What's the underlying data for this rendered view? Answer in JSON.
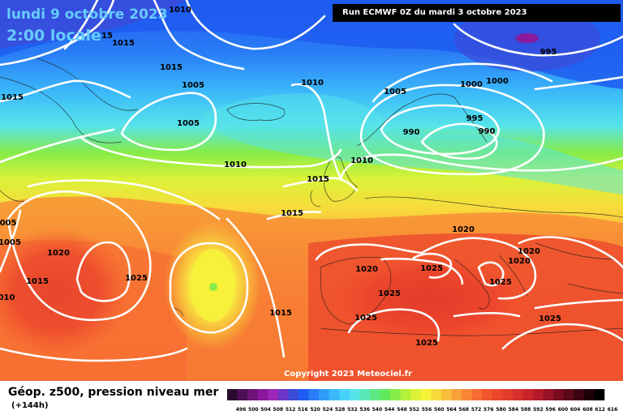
{
  "map": {
    "date_line": "lundi 9 octobre 2023",
    "time_line": "2:00 locale",
    "run_info": "Run ECMWF 0Z du mardi 3 octobre 2023",
    "copyright": "Copyright 2023 Meteociel.fr",
    "product": "Géop. z500, pression niveau mer",
    "lead_time": "(+144h)",
    "isobar_labels": [
      {
        "text": "1010"
      },
      {
        "text": "15"
      },
      {
        "text": "1015"
      },
      {
        "text": "1015"
      },
      {
        "text": "1005"
      },
      {
        "text": "1015"
      },
      {
        "text": "1005"
      },
      {
        "text": "1010"
      },
      {
        "text": "1005"
      },
      {
        "text": "995"
      },
      {
        "text": "1000"
      },
      {
        "text": "1000"
      },
      {
        "text": "995"
      },
      {
        "text": "990"
      },
      {
        "text": "990"
      },
      {
        "text": "1010"
      },
      {
        "text": "1010"
      },
      {
        "text": "1015"
      },
      {
        "text": "1015"
      },
      {
        "text": "1020"
      },
      {
        "text": "1025"
      },
      {
        "text": "005"
      },
      {
        "text": "1005"
      },
      {
        "text": "1020"
      },
      {
        "text": "1015"
      },
      {
        "text": "010"
      },
      {
        "text": "1025"
      },
      {
        "text": "1020"
      },
      {
        "text": "1025"
      },
      {
        "text": "1025"
      },
      {
        "text": "1025"
      },
      {
        "text": "1025"
      },
      {
        "text": "1015"
      },
      {
        "text": "1020"
      },
      {
        "text": "1025"
      },
      {
        "text": "1020"
      }
    ]
  },
  "colors": {
    "isobar": "#ffffff",
    "title": "#66ccff",
    "z500_scale": [
      "#2a0a2e",
      "#4b0f52",
      "#6c1476",
      "#8a1a9b",
      "#9d28b8",
      "#6d34c8",
      "#3c4bd8",
      "#1f5cf0",
      "#2a7df6",
      "#2f9cf8",
      "#3ab8fa",
      "#46d2fa",
      "#56e4ea",
      "#5ae8b8",
      "#5ee884",
      "#62e85c",
      "#86ec48",
      "#b4f03c",
      "#dcf238",
      "#f6f23a",
      "#f8da3c",
      "#f8be3c",
      "#f8a23a",
      "#f88636",
      "#f66c32",
      "#f2562e",
      "#ec462c",
      "#e23c2c",
      "#d6302c",
      "#c8242a",
      "#b21a28",
      "#961224",
      "#780c20",
      "#5a081a",
      "#3c0412",
      "#1e0208",
      "#000000"
    ]
  },
  "scale_labels": [
    "496",
    "500",
    "504",
    "508",
    "512",
    "516",
    "520",
    "524",
    "528",
    "532",
    "536",
    "540",
    "544",
    "548",
    "552",
    "556",
    "560",
    "564",
    "568",
    "572",
    "576",
    "580",
    "584",
    "588",
    "592",
    "596",
    "600",
    "604",
    "608",
    "612",
    "616"
  ]
}
